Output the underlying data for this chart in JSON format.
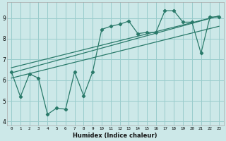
{
  "xlabel": "Humidex (Indice chaleur)",
  "bg_color": "#cce8e8",
  "grid_color": "#99cccc",
  "line_color": "#2a7a6a",
  "xlim": [
    -0.5,
    23.5
  ],
  "ylim": [
    3.8,
    9.75
  ],
  "xticks": [
    0,
    1,
    2,
    3,
    4,
    5,
    6,
    7,
    8,
    9,
    10,
    11,
    12,
    13,
    14,
    15,
    16,
    17,
    18,
    19,
    20,
    21,
    22,
    23
  ],
  "yticks": [
    4,
    5,
    6,
    7,
    8,
    9
  ],
  "series_x": [
    0,
    1,
    2,
    3,
    4,
    5,
    6,
    7,
    8,
    9,
    10,
    11,
    12,
    13,
    14,
    15,
    16,
    17,
    18,
    19,
    20,
    21,
    22,
    23
  ],
  "series_y": [
    6.4,
    5.2,
    6.3,
    6.1,
    4.35,
    4.65,
    4.6,
    6.4,
    5.25,
    6.4,
    8.45,
    8.6,
    8.7,
    8.85,
    8.25,
    8.3,
    8.3,
    9.35,
    9.35,
    8.8,
    8.8,
    7.3,
    9.05,
    9.05
  ],
  "line1_x": [
    0,
    23
  ],
  "line1_y": [
    6.35,
    9.1
  ],
  "line2_x": [
    0,
    23
  ],
  "line2_y": [
    6.1,
    8.6
  ],
  "line3_x": [
    0,
    23
  ],
  "line3_y": [
    6.6,
    9.1
  ]
}
